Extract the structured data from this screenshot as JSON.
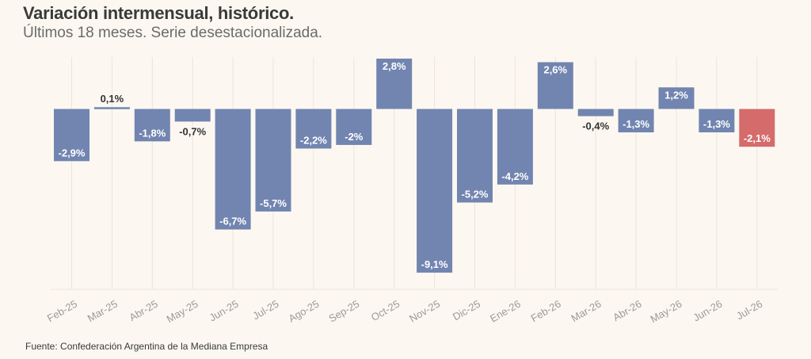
{
  "header": {
    "title": "Variación intermensual, histórico.",
    "subtitle": "Últimos 18 meses. Serie desestacionalizada."
  },
  "footer": {
    "source": "Fuente: Confederación Argentina de la Mediana Empresa"
  },
  "colors": {
    "bar_default": "#7285b0",
    "bar_highlight": "#d56b6b",
    "background": "#fcf8f1",
    "grid": "#ebe5da",
    "axis_label": "#9a9a9a",
    "label_outside": "#333333",
    "label_inside": "#ffffff"
  },
  "chart_data": {
    "type": "bar",
    "title": "Variación intermensual, histórico.",
    "subtitle": "Últimos 18 meses. Serie desestacionalizada.",
    "categories": [
      "Feb-25",
      "Mar-25",
      "Abr-25",
      "May-25",
      "Jun-25",
      "Jul-25",
      "Ago-25",
      "Sep-25",
      "Oct-25",
      "Nov-25",
      "Dic-25",
      "Ene-26",
      "Feb-26",
      "Mar-26",
      "Abr-26",
      "May-26",
      "Jun-26",
      "Jul-26"
    ],
    "values": [
      -2.9,
      0.1,
      -1.8,
      -0.7,
      -6.7,
      -5.7,
      -2.2,
      -2,
      2.8,
      -9.1,
      -5.2,
      -4.2,
      2.6,
      -0.4,
      -1.3,
      1.2,
      -1.3,
      -2.1
    ],
    "data_labels": [
      "-2,9%",
      "0,1%",
      "-1,8%",
      "-0,7%",
      "-6,7%",
      "-5,7%",
      "-2,2%",
      "-2%",
      "2,8%",
      "-9,1%",
      "-5,2%",
      "-4,2%",
      "2,6%",
      "-0,4%",
      "-1,3%",
      "1,2%",
      "-1,3%",
      "-2,1%"
    ],
    "highlight_index": 17,
    "xlabel": "",
    "ylabel": "",
    "ylim": [
      -10,
      3
    ],
    "grid": "vertical",
    "legend": "none"
  }
}
